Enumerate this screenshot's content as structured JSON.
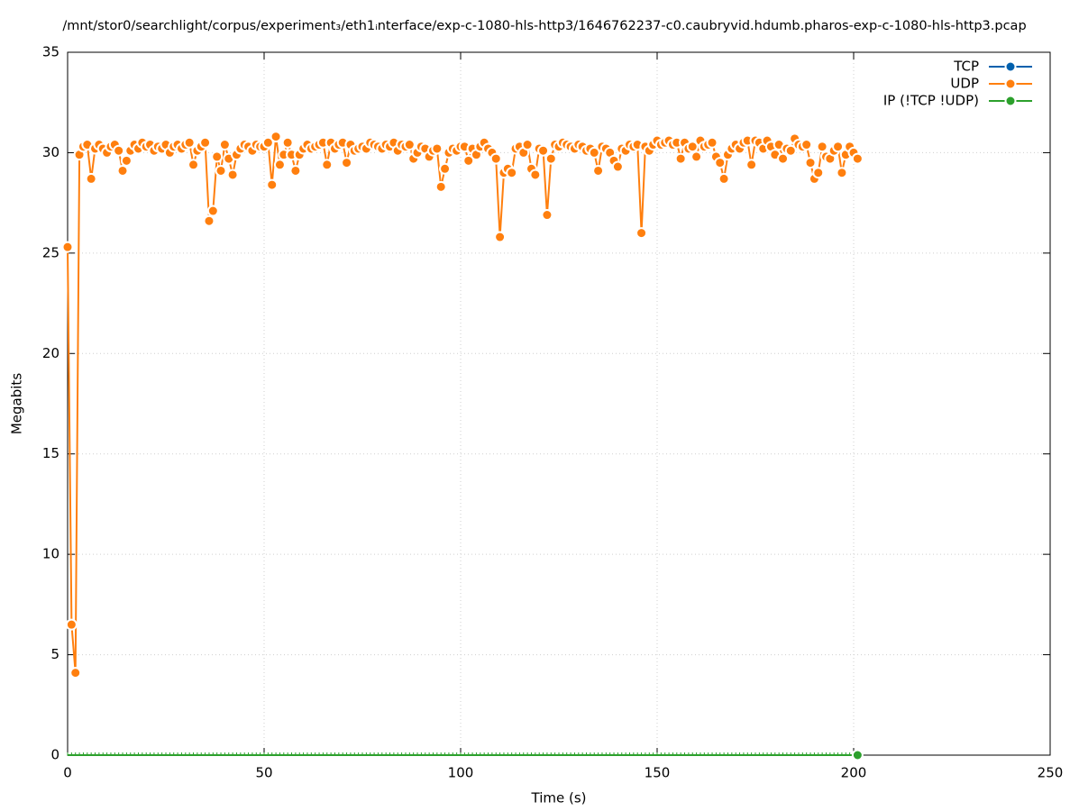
{
  "chart_data": {
    "type": "line",
    "title": "/mnt/stor0/searchlight/corpus/experiment₃/eth1ᵢnterface/exp-c-1080-hls-http3/1646762237-c0.caubryvid.hdumb.pharos-exp-c-1080-hls-http3.pcap",
    "xlabel": "Time (s)",
    "ylabel": "Megabits",
    "x": [
      0,
      1,
      2,
      3,
      4,
      5,
      6,
      7,
      8,
      9,
      10,
      11,
      12,
      13,
      14,
      15,
      16,
      17,
      18,
      19,
      20,
      21,
      22,
      23,
      24,
      25,
      26,
      27,
      28,
      29,
      30,
      31,
      32,
      33,
      34,
      35,
      36,
      37,
      38,
      39,
      40,
      41,
      42,
      43,
      44,
      45,
      46,
      47,
      48,
      49,
      50,
      51,
      52,
      53,
      54,
      55,
      56,
      57,
      58,
      59,
      60,
      61,
      62,
      63,
      64,
      65,
      66,
      67,
      68,
      69,
      70,
      71,
      72,
      73,
      74,
      75,
      76,
      77,
      78,
      79,
      80,
      81,
      82,
      83,
      84,
      85,
      86,
      87,
      88,
      89,
      90,
      91,
      92,
      93,
      94,
      95,
      96,
      97,
      98,
      99,
      100,
      101,
      102,
      103,
      104,
      105,
      106,
      107,
      108,
      109,
      110,
      111,
      112,
      113,
      114,
      115,
      116,
      117,
      118,
      119,
      120,
      121,
      122,
      123,
      124,
      125,
      126,
      127,
      128,
      129,
      130,
      131,
      132,
      133,
      134,
      135,
      136,
      137,
      138,
      139,
      140,
      141,
      142,
      143,
      144,
      145,
      146,
      147,
      148,
      149,
      150,
      151,
      152,
      153,
      154,
      155,
      156,
      157,
      158,
      159,
      160,
      161,
      162,
      163,
      164,
      165,
      166,
      167,
      168,
      169,
      170,
      171,
      172,
      173,
      174,
      175,
      176,
      177,
      178,
      179,
      180,
      181,
      182,
      183,
      184,
      185,
      186,
      187,
      188,
      189,
      190,
      191,
      192,
      193,
      194,
      195,
      196,
      197,
      198,
      199,
      200,
      201
    ],
    "series": [
      {
        "name": "TCP",
        "color": "#0060ad"
      },
      {
        "name": "UDP",
        "color": "#ff7f0e",
        "values": [
          25.3,
          6.5,
          4.1,
          29.9,
          30.3,
          30.4,
          28.7,
          30.2,
          30.4,
          30.2,
          30.0,
          30.3,
          30.4,
          30.1,
          29.1,
          29.6,
          30.1,
          30.4,
          30.2,
          30.5,
          30.3,
          30.4,
          30.1,
          30.3,
          30.2,
          30.4,
          30.0,
          30.3,
          30.4,
          30.2,
          30.4,
          30.5,
          29.4,
          30.1,
          30.3,
          30.5,
          26.6,
          27.1,
          29.8,
          29.1,
          30.4,
          29.7,
          28.9,
          29.9,
          30.2,
          30.4,
          30.3,
          30.1,
          30.4,
          30.3,
          30.3,
          30.5,
          28.4,
          30.8,
          29.4,
          29.9,
          30.5,
          29.9,
          29.1,
          29.9,
          30.2,
          30.4,
          30.2,
          30.3,
          30.4,
          30.5,
          29.4,
          30.5,
          30.2,
          30.4,
          30.5,
          29.5,
          30.4,
          30.1,
          30.2,
          30.3,
          30.2,
          30.5,
          30.4,
          30.3,
          30.2,
          30.4,
          30.3,
          30.5,
          30.1,
          30.4,
          30.3,
          30.4,
          29.7,
          30.0,
          30.3,
          30.2,
          29.8,
          30.1,
          30.2,
          28.3,
          29.2,
          30.0,
          30.2,
          30.1,
          30.3,
          30.3,
          29.6,
          30.2,
          29.9,
          30.3,
          30.5,
          30.2,
          30.0,
          29.7,
          25.8,
          29.0,
          29.2,
          29.0,
          30.2,
          30.3,
          30.0,
          30.4,
          29.2,
          28.9,
          30.2,
          30.1,
          26.9,
          29.7,
          30.4,
          30.3,
          30.5,
          30.4,
          30.3,
          30.2,
          30.4,
          30.3,
          30.1,
          30.2,
          30.0,
          29.1,
          30.3,
          30.2,
          30.0,
          29.6,
          29.3,
          30.2,
          30.1,
          30.4,
          30.3,
          30.4,
          26.0,
          30.3,
          30.1,
          30.4,
          30.6,
          30.4,
          30.5,
          30.6,
          30.4,
          30.5,
          29.7,
          30.5,
          30.2,
          30.3,
          29.8,
          30.6,
          30.3,
          30.4,
          30.5,
          29.8,
          29.5,
          28.7,
          29.9,
          30.2,
          30.4,
          30.2,
          30.5,
          30.6,
          29.4,
          30.6,
          30.5,
          30.2,
          30.6,
          30.3,
          29.9,
          30.4,
          29.7,
          30.2,
          30.1,
          30.7,
          30.4,
          30.3,
          30.4,
          29.5,
          28.7,
          29.0,
          30.3,
          29.8,
          29.7,
          30.1,
          30.3,
          29.0,
          29.9,
          30.3,
          30.0,
          29.7
        ]
      },
      {
        "name": "IP (!TCP  !UDP)",
        "color": "#2ca02c",
        "values": [
          0,
          0,
          0,
          0,
          0,
          0,
          0,
          0,
          0,
          0,
          0,
          0,
          0,
          0,
          0,
          0,
          0,
          0,
          0,
          0,
          0,
          0,
          0,
          0,
          0,
          0,
          0,
          0,
          0,
          0,
          0,
          0,
          0,
          0,
          0,
          0,
          0,
          0,
          0,
          0,
          0,
          0,
          0,
          0,
          0,
          0,
          0,
          0,
          0,
          0,
          0,
          0,
          0,
          0,
          0,
          0,
          0,
          0,
          0,
          0,
          0,
          0,
          0,
          0,
          0,
          0,
          0,
          0,
          0,
          0,
          0,
          0,
          0,
          0,
          0,
          0,
          0,
          0,
          0,
          0,
          0,
          0,
          0,
          0,
          0,
          0,
          0,
          0,
          0,
          0,
          0,
          0,
          0,
          0,
          0,
          0,
          0,
          0,
          0,
          0,
          0,
          0,
          0,
          0,
          0,
          0,
          0,
          0,
          0,
          0,
          0,
          0,
          0,
          0,
          0,
          0,
          0,
          0,
          0,
          0,
          0,
          0,
          0,
          0,
          0,
          0,
          0,
          0,
          0,
          0,
          0,
          0,
          0,
          0,
          0,
          0,
          0,
          0,
          0,
          0,
          0,
          0,
          0,
          0,
          0,
          0,
          0,
          0,
          0,
          0,
          0,
          0,
          0,
          0,
          0,
          0,
          0,
          0,
          0,
          0,
          0,
          0,
          0,
          0,
          0,
          0,
          0,
          0,
          0,
          0,
          0,
          0,
          0,
          0,
          0,
          0,
          0,
          0,
          0,
          0,
          0,
          0,
          0,
          0,
          0,
          0,
          0,
          0,
          0,
          0,
          0,
          0,
          0,
          0,
          0,
          0,
          0,
          0,
          0,
          0,
          0,
          0
        ]
      }
    ],
    "xlim": [
      0,
      250
    ],
    "xticks": [
      0,
      50,
      100,
      150,
      200,
      250
    ],
    "ylim": [
      0,
      35
    ],
    "yticks": [
      0,
      5,
      10,
      15,
      20,
      25,
      30,
      35
    ],
    "grid": true,
    "legend": "top-right"
  }
}
